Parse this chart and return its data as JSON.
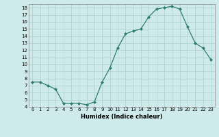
{
  "x": [
    0,
    1,
    2,
    3,
    4,
    5,
    6,
    7,
    8,
    9,
    10,
    11,
    12,
    13,
    14,
    15,
    16,
    17,
    18,
    19,
    20,
    21,
    22,
    23
  ],
  "y": [
    7.5,
    7.5,
    7.0,
    6.5,
    4.5,
    4.5,
    4.5,
    4.3,
    4.7,
    7.5,
    9.5,
    12.3,
    14.3,
    14.7,
    15.0,
    16.7,
    17.8,
    18.0,
    18.2,
    17.8,
    15.3,
    13.0,
    12.3,
    10.7
  ],
  "xlabel": "Humidex (Indice chaleur)",
  "ylim": [
    4,
    18.5
  ],
  "xlim": [
    -0.5,
    23.5
  ],
  "yticks": [
    4,
    5,
    6,
    7,
    8,
    9,
    10,
    11,
    12,
    13,
    14,
    15,
    16,
    17,
    18
  ],
  "xticks": [
    0,
    1,
    2,
    3,
    4,
    5,
    6,
    7,
    8,
    9,
    10,
    11,
    12,
    13,
    14,
    15,
    16,
    17,
    18,
    19,
    20,
    21,
    22,
    23
  ],
  "line_color": "#2e7d6e",
  "marker": "D",
  "marker_size": 2.0,
  "bg_color": "#ceeaea",
  "grid_color": "#aed4d4",
  "xlabel_fontsize": 6.0,
  "tick_fontsize": 5.0
}
